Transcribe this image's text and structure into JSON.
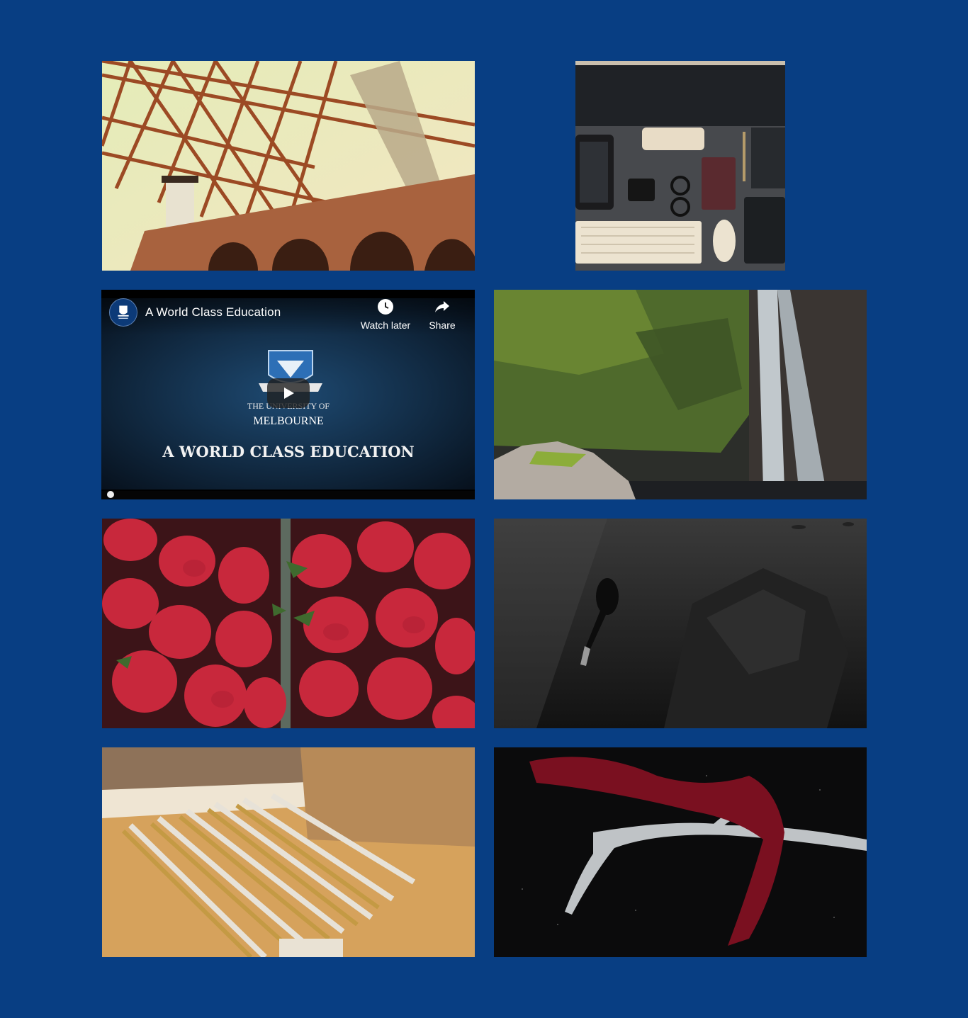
{
  "background_color": "#083e83",
  "gallery": {
    "tiles": [
      {
        "alt": "Bridge"
      },
      {
        "alt": "Desk"
      },
      {
        "alt": "Waterfall"
      },
      {
        "alt": "Strawberries"
      },
      {
        "alt": "Diver"
      },
      {
        "alt": "Rulers"
      },
      {
        "alt": "Antler"
      }
    ]
  },
  "video": {
    "title": "A World Class Education",
    "watch_later_label": "Watch later",
    "share_label": "Share",
    "thumbnail": {
      "line1": "THE UNIVERSITY OF",
      "line2": "MELBOURNE",
      "caption": "A WORLD CLASS EDUCATION"
    },
    "icons": {
      "channel": "university-crest-icon",
      "watch_later": "clock-icon",
      "share": "share-arrow-icon",
      "play": "play-icon"
    }
  }
}
